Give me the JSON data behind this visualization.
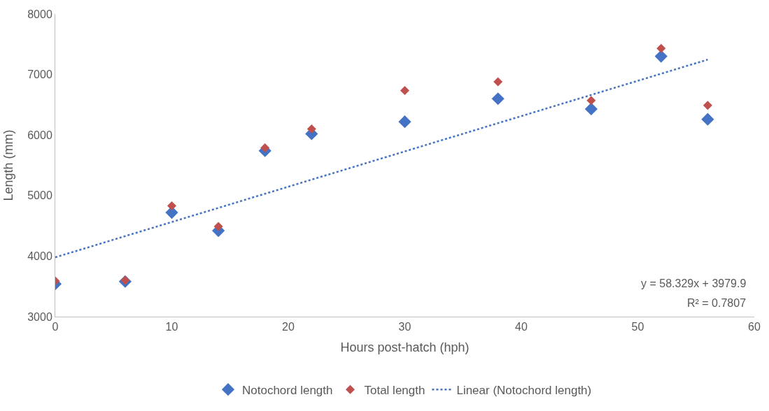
{
  "chart_data": {
    "type": "scatter",
    "xlabel": "Hours post-hatch (hph)",
    "ylabel": "Length (mm)",
    "x": [
      0,
      6,
      10,
      14,
      18,
      22,
      30,
      38,
      46,
      52,
      56
    ],
    "series": [
      {
        "name": "Notochord length",
        "color": "#4472c4",
        "values": [
          3540,
          3580,
          4720,
          4420,
          5740,
          6020,
          6220,
          6600,
          6430,
          7300,
          6260
        ]
      },
      {
        "name": "Total length",
        "color": "#c0504d",
        "values": [
          3590,
          3600,
          4830,
          4490,
          5790,
          6100,
          6735,
          6880,
          6570,
          7430,
          6490
        ]
      },
      {
        "name": "Linear (Notochord length)",
        "type": "line",
        "color": "#4472c4",
        "x": [
          0,
          56
        ],
        "values": [
          3979.9,
          7246.3
        ],
        "line_style": "dotted",
        "marker": "none"
      }
    ],
    "marker": "diamond",
    "xlim": [
      0,
      60
    ],
    "xticks": [
      0,
      10,
      20,
      30,
      40,
      50,
      60
    ],
    "ylim": [
      3000,
      8000
    ],
    "yticks": [
      3000,
      4000,
      5000,
      6000,
      7000,
      8000
    ],
    "grid": false,
    "legend": "bottom",
    "annotations": [
      "y = 58.329x + 3979.9",
      "R² = 0.7807"
    ]
  }
}
